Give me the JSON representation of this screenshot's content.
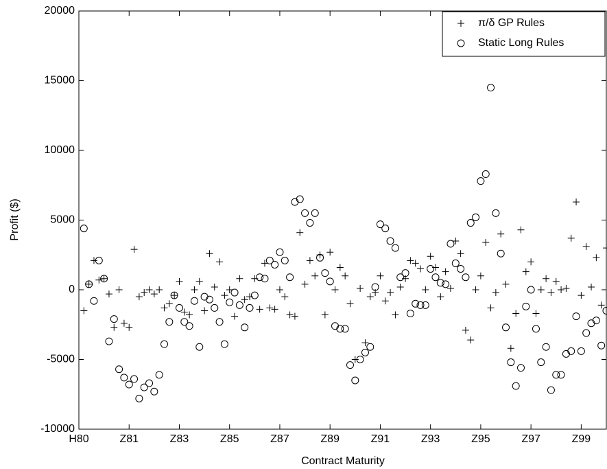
{
  "chart_data": {
    "type": "scatter",
    "xlabel": "Contract Maturity",
    "ylabel": "Profit ($)",
    "xlim": [
      0,
      105
    ],
    "ylim": [
      -10000,
      20000
    ],
    "xticks": [
      {
        "value": 0,
        "label": "H80"
      },
      {
        "value": 10,
        "label": "Z81"
      },
      {
        "value": 20,
        "label": "Z83"
      },
      {
        "value": 30,
        "label": "Z85"
      },
      {
        "value": 40,
        "label": "Z87"
      },
      {
        "value": 50,
        "label": "Z89"
      },
      {
        "value": 60,
        "label": "Z91"
      },
      {
        "value": 70,
        "label": "Z93"
      },
      {
        "value": 80,
        "label": "Z95"
      },
      {
        "value": 90,
        "label": "Z97"
      },
      {
        "value": 100,
        "label": "Z99"
      }
    ],
    "yticks": [
      -10000,
      -5000,
      0,
      5000,
      10000,
      15000,
      20000
    ],
    "grid": false,
    "legend": "upper right",
    "x": [
      1,
      2,
      3,
      4,
      5,
      6,
      7,
      8,
      9,
      10,
      11,
      12,
      13,
      14,
      15,
      16,
      17,
      18,
      19,
      20,
      21,
      22,
      23,
      24,
      25,
      26,
      27,
      28,
      29,
      30,
      31,
      32,
      33,
      34,
      35,
      36,
      37,
      38,
      39,
      40,
      41,
      42,
      43,
      44,
      45,
      46,
      47,
      48,
      49,
      50,
      51,
      52,
      53,
      54,
      55,
      56,
      57,
      58,
      59,
      60,
      61,
      62,
      63,
      64,
      65,
      66,
      67,
      68,
      69,
      70,
      71,
      72,
      73,
      74,
      75,
      76,
      77,
      78,
      79,
      80,
      81,
      82,
      83,
      84,
      85,
      86,
      87,
      88,
      89,
      90,
      91,
      92,
      93,
      94,
      95,
      96,
      97,
      98,
      99,
      100,
      101,
      102,
      103,
      104,
      105
    ],
    "series": [
      {
        "name": "π/δ GP Rules",
        "marker": "plus",
        "color": "#000000",
        "values": [
          -1500,
          400,
          2100,
          700,
          800,
          -300,
          -2700,
          0,
          -2400,
          -2700,
          2900,
          -500,
          -200,
          0,
          -300,
          0,
          -1300,
          -1000,
          -400,
          600,
          -1600,
          -1800,
          0,
          600,
          -1500,
          2600,
          200,
          2000,
          -400,
          0,
          -1900,
          800,
          -700,
          -500,
          800,
          -1400,
          1900,
          -1300,
          -1400,
          0,
          -500,
          -1800,
          -1900,
          4100,
          400,
          2100,
          1000,
          2500,
          -1800,
          2700,
          0,
          1600,
          1000,
          -1000,
          -5000,
          100,
          -3800,
          -500,
          -200,
          1000,
          -800,
          -200,
          -1800,
          200,
          800,
          2100,
          1900,
          1500,
          0,
          2400,
          1600,
          -500,
          1300,
          100,
          3500,
          2600,
          -2900,
          -3600,
          0,
          1000,
          3400,
          -1300,
          -200,
          4000,
          400,
          -4200,
          -1700,
          4300,
          1300,
          2000,
          -1700,
          0,
          800,
          -200,
          600,
          0,
          100,
          3700,
          6300,
          -400,
          3100,
          200,
          2300,
          -1100,
          3000
        ]
      },
      {
        "name": "Static Long Rules",
        "marker": "circle",
        "color": "#000000",
        "values": [
          4400,
          400,
          -800,
          2100,
          800,
          -3700,
          -2100,
          -5700,
          -6300,
          -6800,
          -6400,
          -7800,
          -7000,
          -6700,
          -7300,
          -6100,
          -3900,
          -2300,
          -400,
          -1300,
          -2300,
          -2600,
          -800,
          -4100,
          -500,
          -700,
          -1300,
          -2300,
          -3900,
          -900,
          -200,
          -1100,
          -2700,
          -1300,
          -400,
          900,
          800,
          2100,
          1800,
          2700,
          2100,
          900,
          6300,
          6500,
          5500,
          4800,
          5500,
          2300,
          1200,
          600,
          -2600,
          -2800,
          -2800,
          -5400,
          -6500,
          -5000,
          -4500,
          -4100,
          200,
          4700,
          4400,
          3500,
          3000,
          900,
          1200,
          -1700,
          -1000,
          -1100,
          -1100,
          1500,
          900,
          500,
          400,
          3300,
          1900,
          1500,
          900,
          4800,
          5200,
          7800,
          8300,
          14500,
          5500,
          2600,
          -2700,
          -5200,
          -6900,
          -5600,
          -1200,
          0,
          -2800,
          -5200,
          -4100,
          -7200,
          -6100,
          -6100,
          -4600,
          -4400,
          -1900,
          -4400,
          -3100,
          -2400,
          -2200,
          -4000,
          -1500
        ]
      }
    ]
  }
}
